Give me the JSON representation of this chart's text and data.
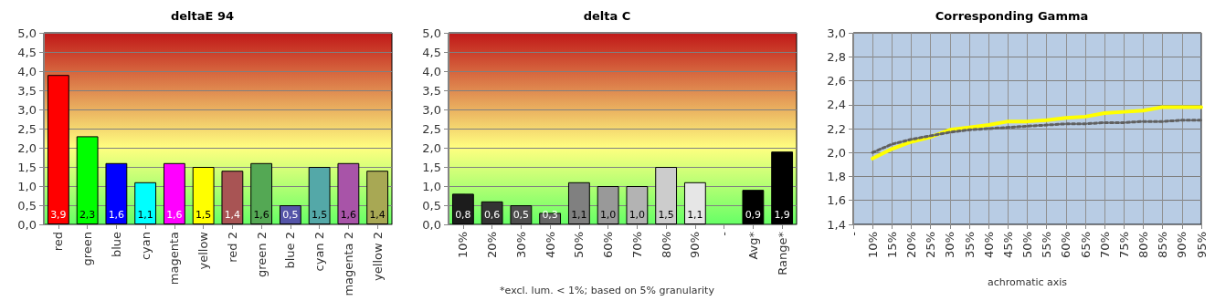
{
  "chart_data": [
    {
      "type": "bar",
      "title": "deltaE 94",
      "categories": [
        "red",
        "green",
        "blue",
        "cyan",
        "magenta",
        "yellow",
        "red 2",
        "green 2",
        "blue 2",
        "cyan 2",
        "magenta 2",
        "yellow 2"
      ],
      "values": [
        3.9,
        2.3,
        1.6,
        1.1,
        1.6,
        1.5,
        1.4,
        1.6,
        0.5,
        1.5,
        1.6,
        1.4
      ],
      "value_labels": [
        "3,9",
        "2,3",
        "1,6",
        "1,1",
        "1,6",
        "1,5",
        "1,4",
        "1,6",
        "0,5",
        "1,5",
        "1,6",
        "1,4"
      ],
      "colors": [
        "#ff0000",
        "#00ff00",
        "#0000ff",
        "#00ffff",
        "#ff00ff",
        "#ffff00",
        "#a85454",
        "#54a854",
        "#5454a8",
        "#54a8a8",
        "#a854a8",
        "#a8a854"
      ],
      "ylim": [
        0,
        5
      ],
      "yticks": [
        {
          "value": 0,
          "label": "0,0"
        },
        {
          "value": 0.5,
          "label": "0,5"
        },
        {
          "value": 1,
          "label": "1,0"
        },
        {
          "value": 1.5,
          "label": "1,5"
        },
        {
          "value": 2,
          "label": "2,0"
        },
        {
          "value": 2.5,
          "label": "2,5"
        },
        {
          "value": 3,
          "label": "3,0"
        },
        {
          "value": 3.5,
          "label": "3,5"
        },
        {
          "value": 4,
          "label": "4,0"
        },
        {
          "value": 4.5,
          "label": "4,5"
        },
        {
          "value": 5,
          "label": "5,0"
        }
      ],
      "grid": "y"
    },
    {
      "type": "bar",
      "title": "delta C",
      "categories": [
        "10%",
        "20%",
        "30%",
        "40%",
        "50%",
        "60%",
        "70%",
        "80%",
        "90%",
        "-",
        "Avg*",
        "Range*"
      ],
      "values": [
        0.8,
        0.6,
        0.5,
        0.3,
        1.1,
        1.0,
        1.0,
        1.5,
        1.1,
        null,
        0.9,
        1.9
      ],
      "value_labels": [
        "0,8",
        "0,6",
        "0,5",
        "0,3",
        "1,1",
        "1,0",
        "1,0",
        "1,5",
        "1,1",
        null,
        "0,9",
        "1,9"
      ],
      "colors": [
        "#1c1c1c",
        "#333333",
        "#4d4d4d",
        "#666666",
        "#808080",
        "#999999",
        "#b3b3b3",
        "#cccccc",
        "#e6e6e6",
        "#000000",
        "#000000",
        "#000000"
      ],
      "ylim": [
        0,
        5
      ],
      "yticks": [
        {
          "value": 0,
          "label": "0,0"
        },
        {
          "value": 0.5,
          "label": "0,5"
        },
        {
          "value": 1,
          "label": "1,0"
        },
        {
          "value": 1.5,
          "label": "1,5"
        },
        {
          "value": 2,
          "label": "2,0"
        },
        {
          "value": 2.5,
          "label": "2,5"
        },
        {
          "value": 3,
          "label": "3,0"
        },
        {
          "value": 3.5,
          "label": "3,5"
        },
        {
          "value": 4,
          "label": "4,0"
        },
        {
          "value": 4.5,
          "label": "4,5"
        },
        {
          "value": 5,
          "label": "5,0"
        }
      ],
      "annotations": [
        "*excl. lum. < 1%; based on 5% granularity"
      ],
      "grid": "y"
    },
    {
      "type": "line",
      "title": "Corresponding Gamma",
      "xlabel": "achromatic axis",
      "categories": [
        "-",
        "10%",
        "15%",
        "20%",
        "25%",
        "30%",
        "35%",
        "40%",
        "45%",
        "50%",
        "55%",
        "60%",
        "65%",
        "70%",
        "75%",
        "80%",
        "85%",
        "90%",
        "95%"
      ],
      "series": [
        {
          "color": "#ffff00",
          "line_style": "solid",
          "values": [
            null,
            1.95,
            2.03,
            2.09,
            2.13,
            2.19,
            2.21,
            2.23,
            2.26,
            2.26,
            2.27,
            2.29,
            2.3,
            2.33,
            2.34,
            2.35,
            2.38,
            2.38,
            2.38
          ]
        },
        {
          "color": "#606060",
          "line_style": "dotted",
          "values": [
            null,
            2.0,
            2.07,
            2.11,
            2.14,
            2.17,
            2.19,
            2.2,
            2.21,
            2.22,
            2.23,
            2.24,
            2.24,
            2.25,
            2.25,
            2.26,
            2.26,
            2.27,
            2.27
          ]
        }
      ],
      "ylim": [
        1.4,
        3.0
      ],
      "yticks": [
        {
          "value": 1.4,
          "label": "1,4"
        },
        {
          "value": 1.6,
          "label": "1,6"
        },
        {
          "value": 1.8,
          "label": "1,8"
        },
        {
          "value": 2.0,
          "label": "2,0"
        },
        {
          "value": 2.2,
          "label": "2,2"
        },
        {
          "value": 2.4,
          "label": "2,4"
        },
        {
          "value": 2.6,
          "label": "2,6"
        },
        {
          "value": 2.8,
          "label": "2,8"
        },
        {
          "value": 3.0,
          "label": "3,0"
        }
      ],
      "grid": true,
      "marker": "none"
    }
  ]
}
